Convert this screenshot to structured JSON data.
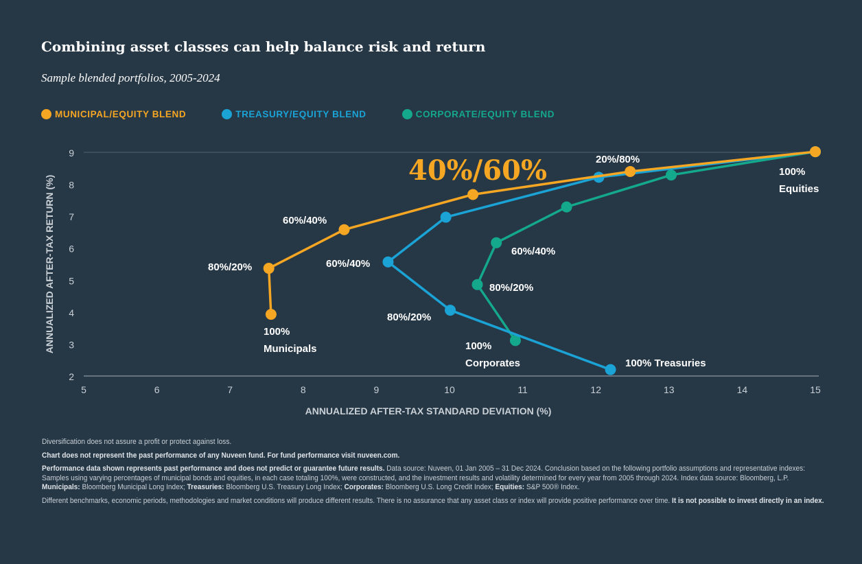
{
  "chart_data": {
    "type": "line",
    "title": "Combining asset classes can help balance risk and return",
    "subtitle": "Sample blended portfolios, 2005-2024",
    "xlabel": "ANNUALIZED AFTER-TAX STANDARD DEVIATION (%)",
    "ylabel": "ANNUALIZED AFTER-TAX RETURN (%)",
    "xlim": [
      5,
      15
    ],
    "ylim": [
      2,
      9
    ],
    "xticks": [
      "5",
      "6",
      "7",
      "8",
      "9",
      "10",
      "11",
      "12",
      "13",
      "14",
      "15"
    ],
    "yticks": [
      "2",
      "3",
      "4",
      "5",
      "6",
      "7",
      "8",
      "9"
    ],
    "grid": "top gridline at 9 only",
    "legend_placement": "top-left",
    "series": [
      {
        "name": "MUNICIPAL/EQUITY BLEND",
        "color": "#f5a623",
        "points": [
          [
            7.56,
            3.93
          ],
          [
            7.53,
            5.37
          ],
          [
            8.56,
            6.58
          ],
          [
            10.32,
            7.68
          ],
          [
            12.47,
            8.4
          ],
          [
            15.0,
            9.02
          ]
        ]
      },
      {
        "name": "TREASURY/EQUITY BLEND",
        "color": "#1ba3d6",
        "points": [
          [
            12.2,
            2.2
          ],
          [
            10.01,
            4.06
          ],
          [
            9.16,
            5.57
          ],
          [
            9.95,
            6.97
          ],
          [
            12.04,
            8.22
          ],
          [
            15.0,
            9.02
          ]
        ]
      },
      {
        "name": "CORPORATE/EQUITY BLEND",
        "color": "#14a88c",
        "points": [
          [
            10.9,
            3.11
          ],
          [
            10.38,
            4.86
          ],
          [
            10.64,
            6.17
          ],
          [
            11.6,
            7.29
          ],
          [
            13.03,
            8.29
          ],
          [
            15.0,
            9.02
          ]
        ]
      }
    ],
    "annotations": [
      {
        "lines": [
          "40%/60%"
        ],
        "style": "highlight"
      },
      {
        "lines": [
          "20%/80%"
        ]
      },
      {
        "lines": [
          "100%",
          "Equities"
        ]
      },
      {
        "lines": [
          "60%/40%"
        ]
      },
      {
        "lines": [
          "80%/20%"
        ]
      },
      {
        "lines": [
          "100%",
          "Municipals"
        ]
      },
      {
        "lines": [
          "60%/40%"
        ]
      },
      {
        "lines": [
          "80%/20%"
        ]
      },
      {
        "lines": [
          "100% Treasuries"
        ]
      },
      {
        "lines": [
          "60%/40%"
        ]
      },
      {
        "lines": [
          "80%/20%"
        ]
      },
      {
        "lines": [
          "100%",
          "Corporates"
        ]
      }
    ]
  },
  "notes": [
    [
      {
        "t": "Diversification does not assure a profit or protect against loss."
      }
    ],
    [
      {
        "t": "Chart does not represent the past performance of any Nuveen fund. For fund performance visit nuveen.com.",
        "b": true
      }
    ],
    [
      {
        "t": "Performance data shown represents past performance and does not predict or guarantee future results.",
        "b": true
      },
      {
        "t": " Data source: Nuveen, 01 Jan 2005 – 31 Dec 2024. Conclusion based on the following portfolio assumptions and representative indexes: Samples using varying percentages of municipal bonds and equities, in each case totaling 100%, were constructed, and the investment results and volatility determined for every year from 2005 through 2024. Index data source: Bloomberg, L.P. "
      },
      {
        "t": "Municipals:",
        "b": true
      },
      {
        "t": " Bloomberg Municipal Long Index; "
      },
      {
        "t": "Treasuries:",
        "b": true
      },
      {
        "t": " Bloomberg U.S. Treasury Long Index; "
      },
      {
        "t": "Corporates:",
        "b": true
      },
      {
        "t": " Bloomberg U.S. Long Credit Index; "
      },
      {
        "t": "Equities:",
        "b": true
      },
      {
        "t": " S&P 500® Index."
      }
    ],
    [
      {
        "t": "Different benchmarks, economic periods, methodologies and market conditions will produce different results. There is no assurance that any asset class or index will provide positive performance over time. "
      },
      {
        "t": "It is not possible to invest directly in an index.",
        "b": true
      }
    ]
  ]
}
